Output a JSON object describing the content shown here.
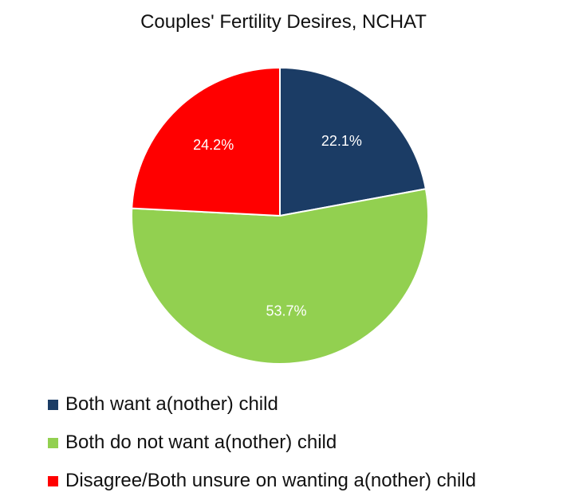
{
  "chart_data": {
    "type": "pie",
    "title": "Couples' Fertility Desires, NCHAT",
    "legend_position": "bottom",
    "slices": [
      {
        "name": "Both want a(nother) child",
        "value": 22.1,
        "label": "22.1%",
        "color": "#1b3c65"
      },
      {
        "name": "Both do not want a(nother) child",
        "value": 53.7,
        "label": "53.7%",
        "color": "#92d050"
      },
      {
        "name": "Disagree/Both unsure on wanting a(nother) child",
        "value": 24.2,
        "label": "24.2%",
        "color": "#ff0000"
      }
    ]
  }
}
